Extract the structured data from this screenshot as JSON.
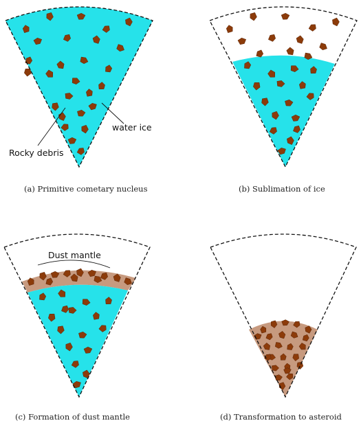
{
  "colors": {
    "ice": "#26e2ea",
    "rock": "#8c3b0a",
    "rock_edge": "#5a2406",
    "mantle": "#c79a7f",
    "outline": "#111111"
  },
  "panels": [
    {
      "id": "a",
      "caption": "(a) Primitive cometary nucleus",
      "state": "full-ice"
    },
    {
      "id": "b",
      "caption": "(b) Sublimation of ice",
      "state": "ice-receded"
    },
    {
      "id": "c",
      "caption": "(c) Formation of dust mantle",
      "state": "dust-mantle"
    },
    {
      "id": "d",
      "caption": "(d) Transformation to asteroid",
      "state": "asteroid"
    }
  ],
  "labels": {
    "rocky_debris": "Rocky debris",
    "water_ice": "water ice",
    "dust_mantle": "Dust mantle"
  }
}
